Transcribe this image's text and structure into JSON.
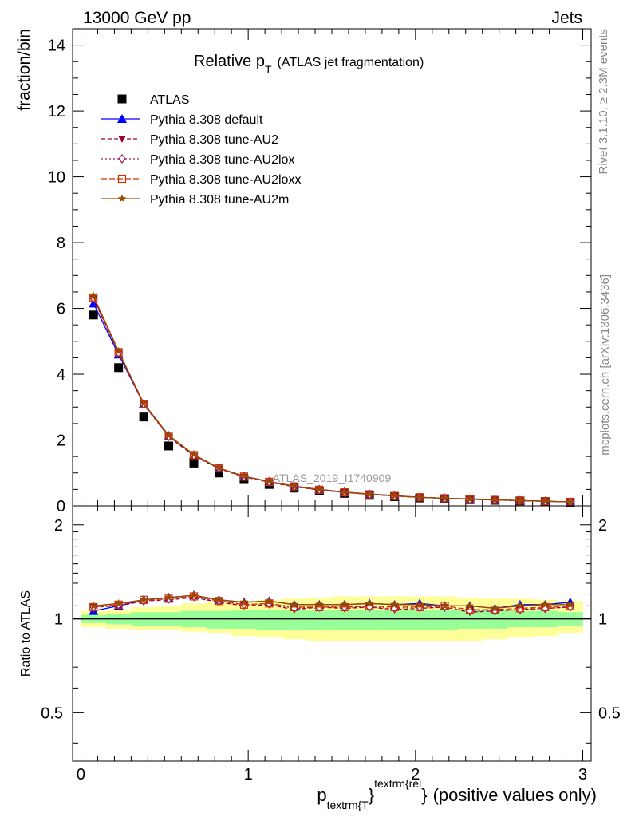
{
  "header": {
    "left": "13000 GeV pp",
    "right": "Jets"
  },
  "side_text": {
    "rivet": "Rivet 3.1.10, ≥ 2.3M events",
    "mcplots": "mcplots.cern.ch [arXiv:1306.3436]"
  },
  "colors": {
    "atlas": "#000000",
    "default": "#0000ff",
    "au2": "#990033",
    "au2lox": "#a4175c",
    "au2loxx": "#cc3300",
    "au2m": "#994c00",
    "band_inner": "#99ff99",
    "band_outer": "#ffff99"
  },
  "chart_data": [
    {
      "type": "line",
      "title": "Relative p",
      "title_sub": "T",
      "title_suffix": "(ATLAS jet fragmentation)",
      "ylabel": "fraction/bin",
      "ylim": [
        0,
        14.5
      ],
      "yticks": [
        0,
        2,
        4,
        6,
        8,
        10,
        12,
        14
      ],
      "xlim": [
        -0.05,
        3.05
      ],
      "analysis_label": "ATLAS_2019_I1740909",
      "legend_position": "top-left",
      "x": [
        0.075,
        0.225,
        0.375,
        0.525,
        0.675,
        0.825,
        0.975,
        1.125,
        1.275,
        1.425,
        1.575,
        1.725,
        1.875,
        2.025,
        2.175,
        2.325,
        2.475,
        2.625,
        2.775,
        2.925
      ],
      "series": [
        {
          "name": "ATLAS",
          "color": "#000000",
          "marker": "square",
          "dash": "none",
          "values": [
            5.8,
            4.2,
            2.7,
            1.82,
            1.3,
            1.0,
            0.8,
            0.65,
            0.54,
            0.45,
            0.38,
            0.32,
            0.28,
            0.24,
            0.21,
            0.19,
            0.17,
            0.15,
            0.13,
            0.11
          ]
        },
        {
          "name": "Pythia 8.308 default",
          "color": "#0000ff",
          "marker": "triangle",
          "dash": "none",
          "values": [
            6.15,
            4.6,
            3.1,
            2.13,
            1.55,
            1.15,
            0.9,
            0.74,
            0.6,
            0.5,
            0.42,
            0.36,
            0.31,
            0.26,
            0.23,
            0.21,
            0.19,
            0.16,
            0.14,
            0.12
          ]
        },
        {
          "name": "Pythia 8.308 tune-AU2",
          "color": "#990033",
          "marker": "triangle-down",
          "dash": "5,3",
          "values": [
            6.3,
            4.65,
            3.08,
            2.1,
            1.52,
            1.13,
            0.88,
            0.72,
            0.58,
            0.48,
            0.41,
            0.35,
            0.3,
            0.26,
            0.23,
            0.2,
            0.18,
            0.16,
            0.14,
            0.12
          ]
        },
        {
          "name": "Pythia 8.308 tune-AU2lox",
          "color": "#a4175c",
          "marker": "diamond",
          "dash": "2,3",
          "values": [
            6.3,
            4.65,
            3.09,
            2.11,
            1.53,
            1.14,
            0.89,
            0.73,
            0.59,
            0.49,
            0.41,
            0.35,
            0.3,
            0.26,
            0.23,
            0.2,
            0.18,
            0.16,
            0.14,
            0.12
          ]
        },
        {
          "name": "Pythia 8.308 tune-AU2loxx",
          "color": "#cc3300",
          "marker": "square-open",
          "dash": "7,3",
          "values": [
            6.33,
            4.67,
            3.1,
            2.12,
            1.54,
            1.14,
            0.89,
            0.73,
            0.59,
            0.49,
            0.41,
            0.35,
            0.3,
            0.26,
            0.23,
            0.2,
            0.18,
            0.16,
            0.14,
            0.12
          ]
        },
        {
          "name": "Pythia 8.308 tune-AU2m",
          "color": "#994c00",
          "marker": "star",
          "dash": "none",
          "values": [
            6.38,
            4.7,
            3.12,
            2.14,
            1.56,
            1.15,
            0.9,
            0.74,
            0.6,
            0.5,
            0.42,
            0.36,
            0.31,
            0.26,
            0.23,
            0.21,
            0.19,
            0.16,
            0.14,
            0.12
          ]
        }
      ]
    },
    {
      "type": "line",
      "ylabel": "Ratio to ATLAS",
      "xlabel_main": "p",
      "xlabel_sub": "textrm{T",
      "xlabel_sup": "textrm{rel",
      "xlabel_brace_mid": "}",
      "xlabel_brace_end": "}",
      "xlabel_suffix": "(positive values only)",
      "ylim": [
        0.35,
        2.3
      ],
      "yticks": [
        0.5,
        1,
        2
      ],
      "ytick_labels": [
        "0.5",
        "1",
        "2"
      ],
      "xlim": [
        -0.05,
        3.05
      ],
      "xticks": [
        0,
        1,
        2,
        3
      ],
      "x": [
        0.075,
        0.225,
        0.375,
        0.525,
        0.675,
        0.825,
        0.975,
        1.125,
        1.275,
        1.425,
        1.575,
        1.725,
        1.875,
        2.025,
        2.175,
        2.325,
        2.475,
        2.625,
        2.775,
        2.925
      ],
      "band_inner": [
        [
          0.97,
          1.03
        ],
        [
          0.96,
          1.04
        ],
        [
          0.95,
          1.05
        ],
        [
          0.95,
          1.05
        ],
        [
          0.94,
          1.06
        ],
        [
          0.93,
          1.06
        ],
        [
          0.93,
          1.07
        ],
        [
          0.92,
          1.07
        ],
        [
          0.92,
          1.07
        ],
        [
          0.92,
          1.07
        ],
        [
          0.92,
          1.07
        ],
        [
          0.92,
          1.07
        ],
        [
          0.92,
          1.07
        ],
        [
          0.92,
          1.07
        ],
        [
          0.92,
          1.07
        ],
        [
          0.93,
          1.07
        ],
        [
          0.93,
          1.07
        ],
        [
          0.94,
          1.06
        ],
        [
          0.94,
          1.06
        ],
        [
          0.95,
          1.05
        ]
      ],
      "band_outer": [
        [
          0.94,
          1.06
        ],
        [
          0.93,
          1.07
        ],
        [
          0.92,
          1.09
        ],
        [
          0.92,
          1.1
        ],
        [
          0.91,
          1.12
        ],
        [
          0.9,
          1.13
        ],
        [
          0.88,
          1.14
        ],
        [
          0.87,
          1.15
        ],
        [
          0.86,
          1.16
        ],
        [
          0.85,
          1.17
        ],
        [
          0.85,
          1.18
        ],
        [
          0.85,
          1.18
        ],
        [
          0.85,
          1.18
        ],
        [
          0.85,
          1.18
        ],
        [
          0.85,
          1.18
        ],
        [
          0.85,
          1.17
        ],
        [
          0.86,
          1.16
        ],
        [
          0.87,
          1.16
        ],
        [
          0.88,
          1.15
        ],
        [
          0.9,
          1.14
        ]
      ],
      "series": [
        {
          "name": "Pythia 8.308 default",
          "values": [
            1.06,
            1.1,
            1.15,
            1.17,
            1.19,
            1.15,
            1.13,
            1.14,
            1.11,
            1.11,
            1.11,
            1.12,
            1.11,
            1.12,
            1.1,
            1.1,
            1.08,
            1.11,
            1.11,
            1.13
          ]
        },
        {
          "name": "Pythia 8.308 tune-AU2",
          "values": [
            1.09,
            1.1,
            1.14,
            1.15,
            1.17,
            1.13,
            1.1,
            1.11,
            1.07,
            1.09,
            1.08,
            1.09,
            1.07,
            1.08,
            1.09,
            1.05,
            1.06,
            1.07,
            1.08,
            1.09
          ]
        },
        {
          "name": "Pythia 8.308 tune-AU2lox",
          "values": [
            1.09,
            1.11,
            1.14,
            1.16,
            1.18,
            1.14,
            1.11,
            1.12,
            1.08,
            1.09,
            1.09,
            1.09,
            1.08,
            1.09,
            1.09,
            1.06,
            1.06,
            1.07,
            1.08,
            1.09
          ]
        },
        {
          "name": "Pythia 8.308 tune-AU2loxx",
          "values": [
            1.09,
            1.11,
            1.15,
            1.16,
            1.18,
            1.14,
            1.11,
            1.12,
            1.09,
            1.09,
            1.09,
            1.1,
            1.09,
            1.09,
            1.1,
            1.07,
            1.07,
            1.08,
            1.09,
            1.1
          ]
        },
        {
          "name": "Pythia 8.308 tune-AU2m",
          "values": [
            1.1,
            1.12,
            1.15,
            1.17,
            1.19,
            1.15,
            1.13,
            1.14,
            1.11,
            1.11,
            1.11,
            1.12,
            1.11,
            1.11,
            1.1,
            1.1,
            1.08,
            1.1,
            1.11,
            1.11
          ]
        }
      ]
    }
  ]
}
